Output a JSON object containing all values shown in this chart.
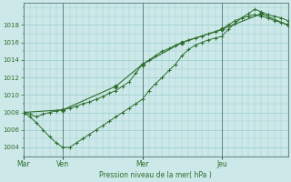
{
  "bg_color": "#cce8e8",
  "grid_color": "#99cccc",
  "line_color": "#2d6e2d",
  "marker_color": "#2d6e2d",
  "xlabel_text": "Pression niveau de la mer( hPa )",
  "ylim": [
    1003.0,
    1020.5
  ],
  "yticks": [
    1004,
    1006,
    1008,
    1010,
    1012,
    1014,
    1016,
    1018
  ],
  "day_labels": [
    "Mar",
    "Ven",
    "Mer",
    "Jeu"
  ],
  "day_positions": [
    0,
    36,
    108,
    180
  ],
  "vline_positions": [
    36,
    108,
    180
  ],
  "xlim": [
    0,
    240
  ],
  "line1_x": [
    0,
    6,
    12,
    18,
    24,
    30,
    36,
    42,
    48,
    54,
    60,
    66,
    72,
    78,
    84,
    90,
    96,
    102,
    108,
    114,
    120,
    126,
    132,
    138,
    144,
    150,
    156,
    162,
    168,
    174,
    180,
    186,
    192,
    198,
    204,
    210,
    216,
    222,
    228,
    234,
    240
  ],
  "line1_y": [
    1008,
    1007.8,
    1007.5,
    1007.8,
    1008.0,
    1008.2,
    1008.3,
    1008.5,
    1008.7,
    1009.0,
    1009.2,
    1009.5,
    1009.8,
    1010.2,
    1010.5,
    1011.0,
    1011.5,
    1012.5,
    1013.5,
    1014.0,
    1014.5,
    1015.0,
    1015.3,
    1015.7,
    1016.0,
    1016.3,
    1016.5,
    1016.7,
    1017.0,
    1017.2,
    1017.5,
    1018.0,
    1018.5,
    1018.8,
    1019.0,
    1019.2,
    1019.0,
    1018.8,
    1018.5,
    1018.3,
    1018.0
  ],
  "line2_x": [
    0,
    6,
    12,
    18,
    24,
    30,
    36,
    42,
    48,
    54,
    60,
    66,
    72,
    78,
    84,
    90,
    96,
    102,
    108,
    114,
    120,
    126,
    132,
    138,
    144,
    150,
    156,
    162,
    168,
    174,
    180,
    186,
    192,
    198,
    204,
    210,
    216,
    222,
    228,
    234,
    240
  ],
  "line2_y": [
    1008,
    1007.5,
    1006.8,
    1006.0,
    1005.2,
    1004.5,
    1004.0,
    1004.0,
    1004.5,
    1005.0,
    1005.5,
    1006.0,
    1006.5,
    1007.0,
    1007.5,
    1008.0,
    1008.5,
    1009.0,
    1009.5,
    1010.5,
    1011.3,
    1012.0,
    1012.8,
    1013.5,
    1014.5,
    1015.2,
    1015.7,
    1016.0,
    1016.3,
    1016.5,
    1016.7,
    1017.5,
    1018.2,
    1018.8,
    1019.3,
    1019.8,
    1019.5,
    1019.2,
    1019.0,
    1018.8,
    1018.5
  ],
  "line3_x": [
    0,
    36,
    84,
    108,
    144,
    180,
    216,
    240
  ],
  "line3_y": [
    1008,
    1008.3,
    1011.0,
    1013.5,
    1016.0,
    1017.5,
    1019.3,
    1018.0
  ]
}
